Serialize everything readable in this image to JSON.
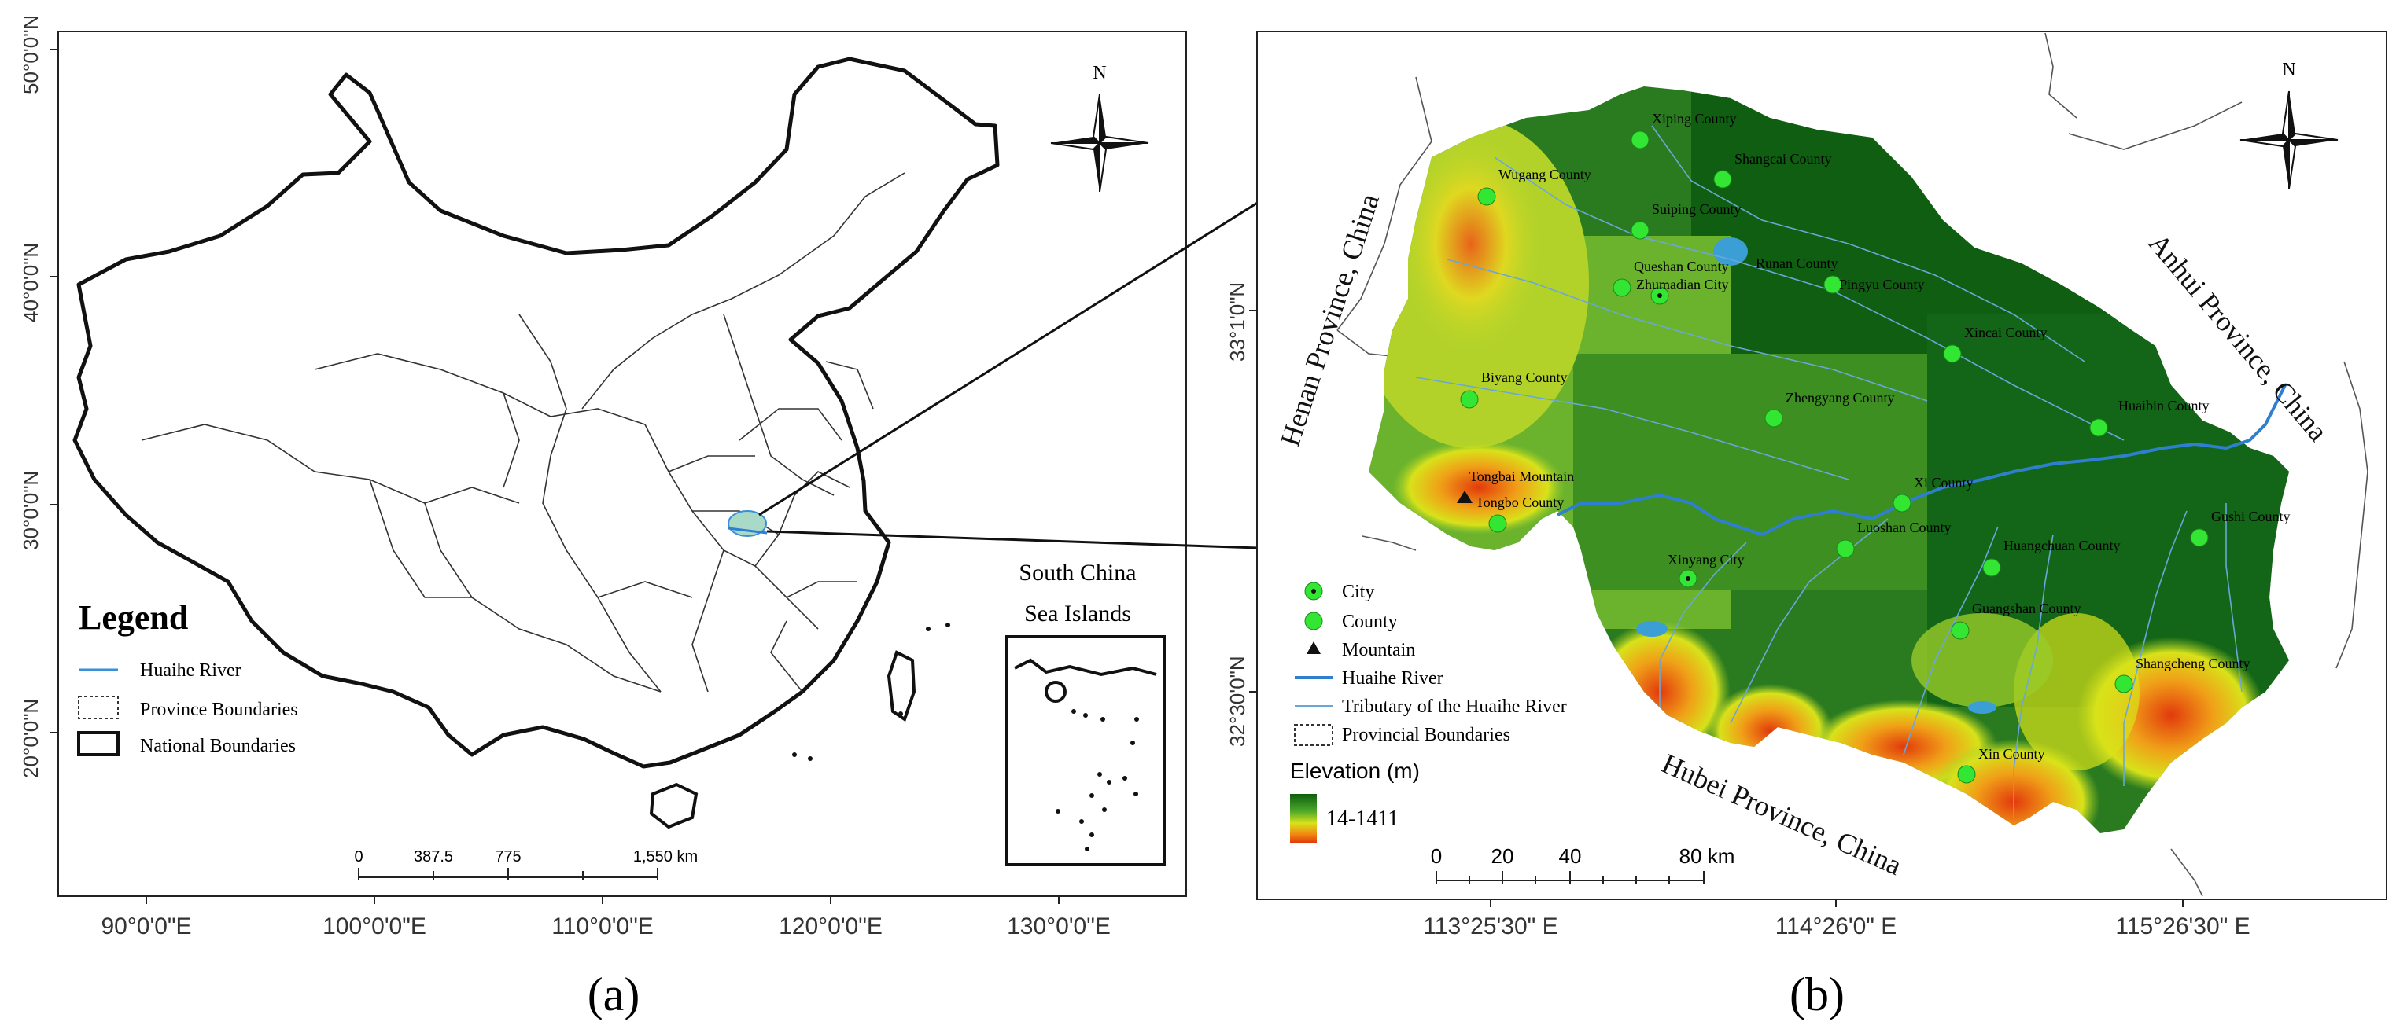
{
  "panel_a": {
    "caption": "(a)",
    "lat_ticks": [
      "50°0'0\"N",
      "40°0'0\"N",
      "30°0'0\"N",
      "20°0'0\"N"
    ],
    "lon_ticks": [
      "90°0'0\"E",
      "100°0'0\"E",
      "110°0'0\"E",
      "120°0'0\"E",
      "130°0'0\"E"
    ],
    "north_label": "N",
    "legend": {
      "title": "Legend",
      "items": [
        {
          "label": "Huaihe River",
          "symbol": "line",
          "color": "#3a8fd6"
        },
        {
          "label": "Province Boundaries",
          "symbol": "dashed-box"
        },
        {
          "label": "National Boundaries",
          "symbol": "solid-box"
        }
      ]
    },
    "scale_bar": {
      "labels": [
        "0",
        "387.5",
        "775",
        "1,550 km"
      ]
    },
    "inset": {
      "title_line1": "South China",
      "title_line2": "Sea Islands"
    }
  },
  "panel_b": {
    "caption": "(b)",
    "lat_ticks": [
      "33°1'0\"N",
      "32°30'0\"N"
    ],
    "lon_ticks": [
      "113°25'30\" E",
      "114°26'0\" E",
      "115°26'30\" E"
    ],
    "north_label": "N",
    "region_labels": {
      "henan": "Henan Province, China",
      "anhui": "Anhui Province, China",
      "hubei": "Hubei Province, China"
    },
    "cities": [
      {
        "name": "Zhumadian City",
        "type": "city"
      },
      {
        "name": "Xinyang City",
        "type": "city"
      }
    ],
    "counties": [
      "Xiping County",
      "Shangcai County",
      "Wugang County",
      "Suiping County",
      "Queshan County",
      "Runan County",
      "Pingyu County",
      "Xincai County",
      "Biyang County",
      "Zhengyang County",
      "Huaibin County",
      "Xi County",
      "Tongbo County",
      "Luoshan County",
      "Gushi County",
      "Huangchuan County",
      "Guangshan County",
      "Shangcheng County",
      "Xin County"
    ],
    "mountain": "Tongbai Mountain",
    "legend": {
      "items": [
        {
          "label": "City",
          "symbol": "city"
        },
        {
          "label": "County",
          "symbol": "county"
        },
        {
          "label": "Mountain",
          "symbol": "triangle"
        },
        {
          "label": "Huaihe River",
          "symbol": "river"
        },
        {
          "label": "Tributary of the Huaihe River",
          "symbol": "tributary"
        },
        {
          "label": "Provincial Boundaries",
          "symbol": "dashed-box"
        }
      ],
      "elevation_title": "Elevation (m)",
      "elevation_range": "14-1411"
    },
    "scale_bar": {
      "labels": [
        "0",
        "20",
        "40",
        "80 km"
      ]
    }
  },
  "colors": {
    "river": "#2f7fd0",
    "tributary": "#6aa7d8",
    "county_marker": "#33e633",
    "elev_low": "#0d5e0d",
    "elev_mid": "#d8e21a",
    "elev_high": "#e03b0a"
  }
}
